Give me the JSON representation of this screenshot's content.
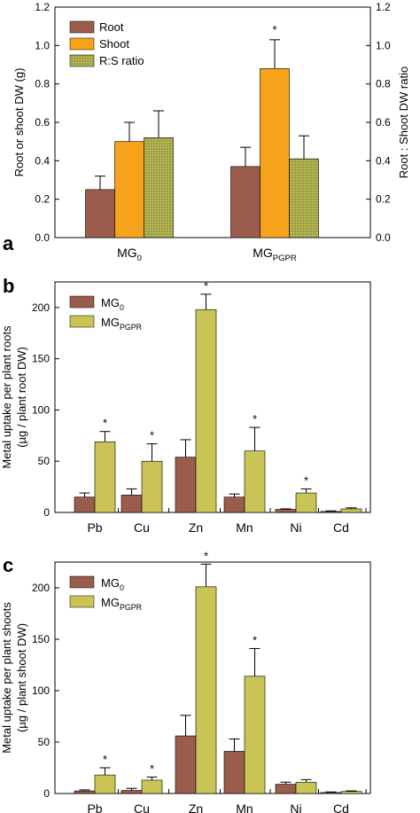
{
  "colors": {
    "root": "#9a5c4c",
    "shoot": "#f7a21b",
    "ratio": "#9ea04a",
    "ratio_dot": "#d8d45a",
    "mg0": "#9a5c4c",
    "mgpgpr": "#c9c455"
  },
  "chart_data": [
    {
      "type": "bar",
      "panel": "a",
      "categories": [
        {
          "base": "MG",
          "sub": "0"
        },
        {
          "base": "MG",
          "sub": "PGPR"
        }
      ],
      "series": [
        {
          "name": "Root",
          "axis": "left",
          "values": [
            0.25,
            0.37
          ],
          "errors": [
            0.07,
            0.1
          ]
        },
        {
          "name": "Shoot",
          "axis": "left",
          "values": [
            0.5,
            0.88
          ],
          "errors": [
            0.1,
            0.15
          ]
        },
        {
          "name": "R:S ratio",
          "axis": "right",
          "values": [
            0.52,
            0.41
          ],
          "errors": [
            0.14,
            0.12
          ]
        }
      ],
      "significance": [
        "",
        "*"
      ],
      "ylabel": "Root or shoot DW (g)",
      "y2label": "Root : Shoot DW ratio",
      "ylim": [
        0,
        1.2
      ],
      "y2lim": [
        0,
        1.2
      ],
      "yticks": [
        "0.0",
        "0.2",
        "0.4",
        "0.6",
        "0.8",
        "1.0",
        "1.2"
      ],
      "y2ticks": [
        "0.0",
        "0.2",
        "0.4",
        "0.6",
        "0.8",
        "1.0",
        "1.2"
      ],
      "legend": "top-left",
      "grid": false
    },
    {
      "type": "bar",
      "panel": "b",
      "categories": [
        "Pb",
        "Cu",
        "Zn",
        "Mn",
        "Ni",
        "Cd"
      ],
      "series": [
        {
          "name": {
            "base": "MG",
            "sub": "0"
          },
          "values": [
            15,
            17,
            54,
            15,
            3,
            1
          ],
          "errors": [
            4,
            6,
            17,
            3,
            0.5,
            0.5
          ]
        },
        {
          "name": {
            "base": "MG",
            "sub": "PGPR"
          },
          "values": [
            69,
            50,
            198,
            60,
            19,
            3.5
          ],
          "errors": [
            10,
            17,
            15,
            23,
            4,
            1
          ]
        }
      ],
      "significance": [
        "*",
        "*",
        "*",
        "*",
        "*",
        ""
      ],
      "ylabel": [
        "Metal uptake per plant roots",
        "(µg / plant root DW)"
      ],
      "ylim": [
        0,
        225
      ],
      "yticks": [
        "0",
        "50",
        "100",
        "150",
        "200"
      ],
      "legend": "top-left",
      "grid": false
    },
    {
      "type": "bar",
      "panel": "c",
      "categories": [
        "Pb",
        "Cu",
        "Zn",
        "Mn",
        "Ni",
        "Cd"
      ],
      "series": [
        {
          "name": {
            "base": "MG",
            "sub": "0"
          },
          "values": [
            2.5,
            3,
            56,
            41,
            9,
            1
          ],
          "errors": [
            1,
            2,
            20,
            12,
            2,
            0.5
          ]
        },
        {
          "name": {
            "base": "MG",
            "sub": "PGPR"
          },
          "values": [
            18,
            13,
            201,
            114,
            11,
            2
          ],
          "errors": [
            7,
            3,
            22,
            27,
            2.5,
            0.5
          ]
        }
      ],
      "significance": [
        "*",
        "*",
        "*",
        "*",
        "",
        ""
      ],
      "ylabel": [
        "Metal uptake per plant shoots",
        "(µg / plant shoot DW)"
      ],
      "ylim": [
        0,
        225
      ],
      "yticks": [
        "0",
        "50",
        "100",
        "150",
        "200"
      ],
      "legend": "top-left",
      "grid": false
    }
  ]
}
